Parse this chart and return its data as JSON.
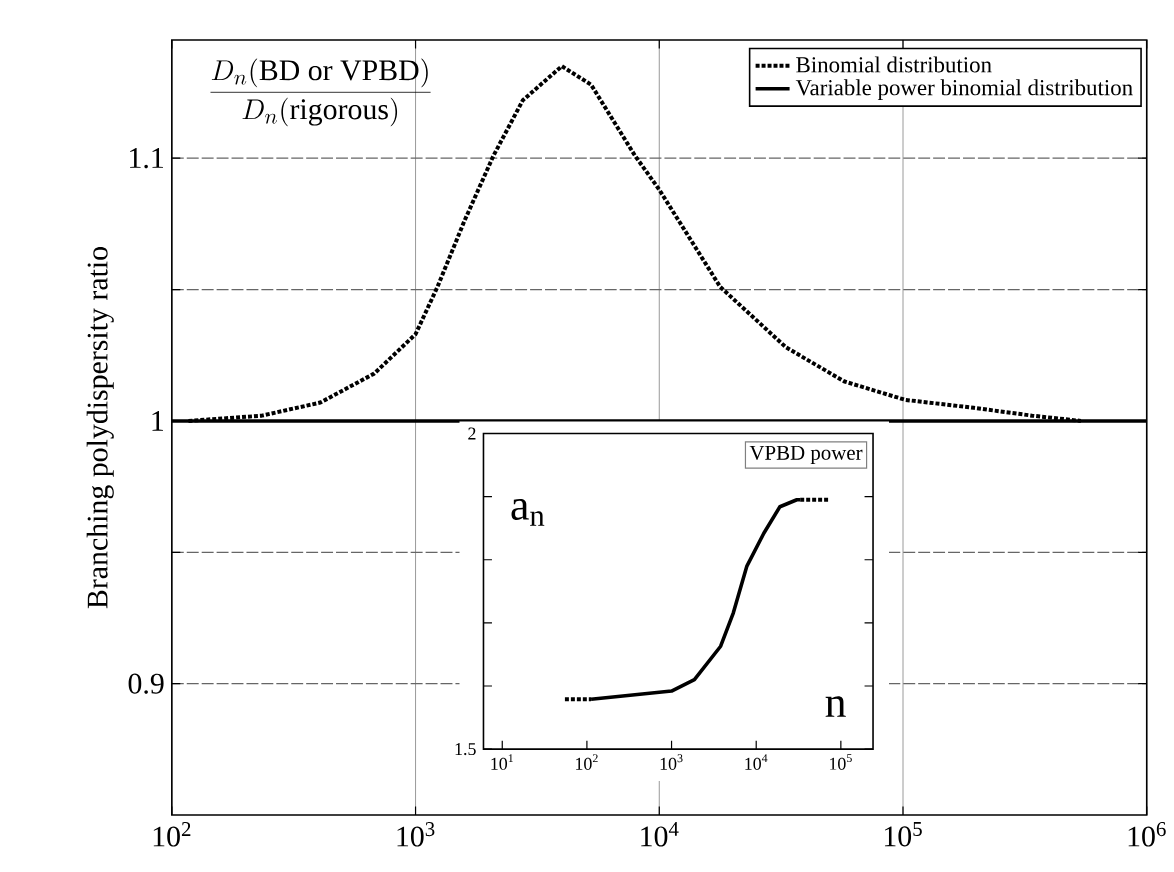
{
  "chart_data": [
    {
      "type": "line",
      "ylabel": "Branching polydispersity ratio",
      "annotations": [
        "\\frac{D_n(\\mathrm{BD\\ or\\ VPBD})}{D_n(\\mathrm{rigorous})}"
      ],
      "xlim": [
        100,
        1000000
      ],
      "ylim": [
        0.85,
        1.145
      ],
      "log": "x",
      "xticks": [
        {
          "value": 100,
          "label": "10$^{2}$"
        },
        {
          "value": 1000,
          "label": "10$^{3}$"
        },
        {
          "value": 10000,
          "label": "10$^{4}$"
        },
        {
          "value": 100000,
          "label": "10$^{5}$"
        },
        {
          "value": 1000000,
          "label": "10$^{6}$"
        }
      ],
      "yticks": [
        0.9,
        {
          "value": 0.95,
          "label": null
        },
        1,
        {
          "value": 1.05,
          "label": null
        },
        1.1
      ],
      "grid": true,
      "legend": "top right",
      "series": [
        {
          "name": "Binomial distribution",
          "color": "#000000",
          "line_style": "dotted",
          "x": [
            117,
            234,
            407,
            676,
            1000,
            1230,
            1585,
            2089,
            2754,
            3981,
            5248,
            7943,
            10000,
            17783,
            33113,
            57544,
            102329,
            194984,
            338844,
            537032
          ],
          "values": [
            1.0,
            1.002,
            1.007,
            1.018,
            1.033,
            1.051,
            1.076,
            1.101,
            1.122,
            1.135,
            1.128,
            1.101,
            1.088,
            1.051,
            1.028,
            1.015,
            1.008,
            1.005,
            1.002,
            1.0
          ]
        },
        {
          "name": "Variable power binomial distribution",
          "color": "#000000",
          "line_style": "solid",
          "x": [
            100,
            1000000
          ],
          "values": [
            1,
            1
          ]
        }
      ]
    },
    {
      "type": "line",
      "title": "VPBD power",
      "annotations": [
        "a$_{n}$",
        "n"
      ],
      "xlim": [
        6,
        240000
      ],
      "ylim": [
        1.5,
        2
      ],
      "log": "x",
      "xticks": [
        {
          "value": 10,
          "label": "10$^{1}$"
        },
        {
          "value": 100,
          "label": "10$^{2}$"
        },
        {
          "value": 1000,
          "label": "10$^{3}$"
        },
        {
          "value": 10000,
          "label": "10$^{4}$"
        },
        {
          "value": 100000,
          "label": "10$^{5}$"
        }
      ],
      "yticks": [
        1.5,
        {
          "value": 1.6,
          "label": null
        },
        {
          "value": 1.7,
          "label": null
        },
        {
          "value": 1.8,
          "label": null
        },
        {
          "value": 1.9,
          "label": null
        },
        2
      ],
      "series": [
        {
          "color": "#000000",
          "line_style": "dotted",
          "x": [
            55,
            112
          ],
          "values": [
            1.579,
            1.579
          ]
        },
        {
          "color": "#000000",
          "line_style": "solid",
          "x": [
            112,
            1000,
            1862,
            3802,
            5370,
            7762,
            12303,
            19055,
            30200,
            33113
          ],
          "values": [
            1.579,
            1.592,
            1.61,
            1.663,
            1.716,
            1.79,
            1.842,
            1.884,
            1.895,
            1.895
          ]
        },
        {
          "color": "#000000",
          "line_style": "dotted",
          "x": [
            33113,
            74131
          ],
          "values": [
            1.895,
            1.895
          ]
        }
      ]
    }
  ]
}
